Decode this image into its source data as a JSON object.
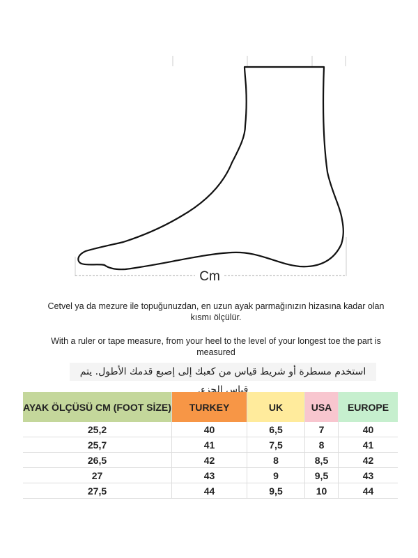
{
  "diagram": {
    "measure_label": "Cm"
  },
  "instructions": {
    "turkish": "Cetvel ya da mezure ile topuğunuzdan, en uzun ayak parmağınızın hizasına kadar olan kısmı ölçülür.",
    "english": "With a ruler or tape measure, from your heel to the level of your longest toe the part is measured",
    "arabic": "استخدم مسطرة أو شريط قياس من كعبك إلى إصبع قدمك الأطول.  يتم قياس الجزء."
  },
  "table": {
    "headers": [
      {
        "label": "AYAK ÖLÇÜSÜ CM (FOOT SİZE)",
        "color": "#c4d79b"
      },
      {
        "label": "TURKEY",
        "color": "#f79646"
      },
      {
        "label": "UK",
        "color": "#ffeb9c"
      },
      {
        "label": "USA",
        "color": "#f8c6cf"
      },
      {
        "label": "EUROPE",
        "color": "#c6efce"
      }
    ],
    "rows": [
      [
        "25,2",
        "40",
        "6,5",
        "7",
        "40"
      ],
      [
        "25,7",
        "41",
        "7,5",
        "8",
        "41"
      ],
      [
        "26,5",
        "42",
        "8",
        "8,5",
        "42"
      ],
      [
        "27",
        "43",
        "9",
        "9,5",
        "43"
      ],
      [
        "27,5",
        "44",
        "9,5",
        "10",
        "44"
      ]
    ]
  }
}
